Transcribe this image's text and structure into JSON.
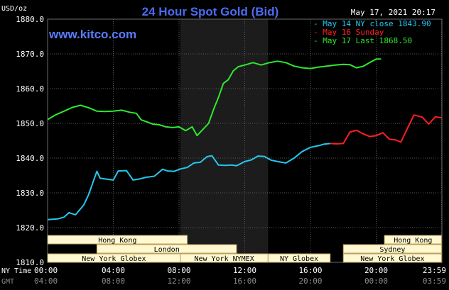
{
  "header": {
    "title": "24 Hour Spot Gold (Bid)",
    "datetime": "May 17, 2021 20:17",
    "unit": "USD/oz",
    "watermark": "www.kitco.com"
  },
  "colors": {
    "background": "#000000",
    "plot_bg": "#000000",
    "shaded_bg": "#1c1c1c",
    "grid": "#5a5a5a",
    "title": "#4a6cf0",
    "watermark": "#5a7cff",
    "series_cyan": "#22c8f0",
    "series_red": "#ff2020",
    "series_green": "#2ee82e",
    "market_fill": "#fff8d0",
    "market_text": "#000000"
  },
  "chart_data": {
    "type": "line",
    "title": "24 Hour Spot Gold (Bid)",
    "ylabel": "USD/oz",
    "ylim": [
      1810,
      1880
    ],
    "yticks": [
      "1880.0",
      "1870.0",
      "1860.0",
      "1850.0",
      "1840.0",
      "1830.0",
      "1820.0",
      "1810.0"
    ],
    "xlim": [
      0,
      24
    ],
    "xlabel_rows": [
      {
        "label": "NY Time",
        "ticks": [
          "00:00",
          "04:00",
          "08:00",
          "12:00",
          "16:00",
          "20:00",
          "23:59"
        ]
      },
      {
        "label": "GMT",
        "ticks": [
          "04:00",
          "08:00",
          "12:00",
          "16:00",
          "20:00",
          "00:00",
          "03:59"
        ]
      }
    ],
    "shaded_region": [
      8.08,
      13.42
    ],
    "legend": {
      "placement": "top-right",
      "entries": [
        {
          "series": "cyan",
          "text": "- May 14 NY close 1843.90"
        },
        {
          "series": "red",
          "text": "- May 16 Sunday"
        },
        {
          "series": "green",
          "text": "- May 17 Last 1868.50"
        }
      ]
    },
    "series": [
      {
        "name": "May 14",
        "color": "cyan",
        "x": [
          0,
          0.6,
          1,
          1.3,
          1.7,
          2.2,
          2.5,
          2.8,
          3.0,
          3.2,
          3.5,
          4.0,
          4.3,
          4.8,
          5.2,
          5.6,
          6.0,
          6.5,
          7.0,
          7.3,
          7.7,
          8.1,
          8.5,
          8.9,
          9.3,
          9.7,
          10.0,
          10.4,
          10.8,
          11.2,
          11.5,
          12.0,
          12.4,
          12.8,
          13.2,
          13.6,
          14.0,
          14.5,
          15.0,
          15.5,
          16.0,
          16.5,
          16.8,
          17.2
        ],
        "values": [
          1822.3,
          1822.5,
          1823.0,
          1824.3,
          1823.7,
          1826.5,
          1829.5,
          1833.6,
          1836.2,
          1834.2,
          1834.0,
          1833.7,
          1836.3,
          1836.4,
          1833.7,
          1834.0,
          1834.5,
          1834.8,
          1836.8,
          1836.3,
          1836.2,
          1836.9,
          1837.3,
          1838.6,
          1838.8,
          1840.4,
          1840.7,
          1838.0,
          1837.9,
          1838.0,
          1837.8,
          1839.0,
          1839.5,
          1840.6,
          1840.5,
          1839.4,
          1839.0,
          1838.6,
          1840.0,
          1841.9,
          1843.1,
          1843.6,
          1844.0,
          1844.2
        ]
      },
      {
        "name": "May 16",
        "color": "red",
        "x": [
          17.2,
          17.6,
          18.0,
          18.4,
          18.8,
          19.2,
          19.6,
          20.0,
          20.4,
          20.8,
          21.2,
          21.5,
          21.9,
          22.3,
          22.8,
          23.2,
          23.6,
          23.98
        ],
        "values": [
          1844.2,
          1844.1,
          1844.2,
          1847.5,
          1848.0,
          1847.0,
          1846.2,
          1846.5,
          1847.3,
          1845.5,
          1845.2,
          1844.6,
          1848.5,
          1852.4,
          1851.8,
          1849.8,
          1851.9,
          1851.6
        ]
      },
      {
        "name": "May 17",
        "color": "green",
        "x": [
          0,
          0.5,
          1.0,
          1.5,
          2.0,
          2.5,
          3.0,
          3.5,
          4.0,
          4.5,
          5.0,
          5.4,
          5.7,
          6.0,
          6.4,
          6.8,
          7.2,
          7.6,
          8.0,
          8.4,
          8.8,
          9.1,
          9.5,
          9.8,
          10.1,
          10.4,
          10.7,
          11.0,
          11.3,
          11.6,
          12.0,
          12.5,
          13.0,
          13.5,
          14.0,
          14.5,
          15.0,
          15.5,
          16.0,
          16.5,
          17.0,
          17.5,
          18.0,
          18.4,
          18.8,
          19.2,
          19.6,
          20.0,
          20.3
        ],
        "values": [
          1851.1,
          1852.5,
          1853.5,
          1854.6,
          1855.2,
          1854.5,
          1853.5,
          1853.4,
          1853.5,
          1853.8,
          1853.2,
          1852.9,
          1851.0,
          1850.5,
          1849.8,
          1849.6,
          1849.0,
          1848.8,
          1849.0,
          1847.9,
          1849.0,
          1846.5,
          1848.5,
          1850.0,
          1854.0,
          1857.5,
          1861.5,
          1862.6,
          1865.1,
          1866.3,
          1866.8,
          1867.5,
          1866.8,
          1867.5,
          1867.9,
          1867.5,
          1866.5,
          1866.0,
          1865.8,
          1866.2,
          1866.5,
          1866.8,
          1867.0,
          1866.9,
          1866.0,
          1866.4,
          1867.5,
          1868.5,
          1868.5
        ]
      }
    ],
    "markets": [
      {
        "label": "Hong Kong",
        "start": 0.0,
        "end": 8.5,
        "row": 0
      },
      {
        "label": "Hong Kong",
        "start": 20.5,
        "end": 23.98,
        "row": 0
      },
      {
        "label": "London",
        "start": 3.0,
        "end": 11.5,
        "row": 1
      },
      {
        "label": "Sydney",
        "start": 18.0,
        "end": 23.98,
        "row": 1
      },
      {
        "label": "New York Globex",
        "start": 0.0,
        "end": 8.08,
        "row": 2
      },
      {
        "label": "New York NYMEX",
        "start": 8.08,
        "end": 13.42,
        "row": 2
      },
      {
        "label": "NY Globex",
        "start": 13.42,
        "end": 17.2,
        "row": 2
      },
      {
        "label": "New York Globex",
        "start": 18.0,
        "end": 23.98,
        "row": 2
      }
    ]
  }
}
